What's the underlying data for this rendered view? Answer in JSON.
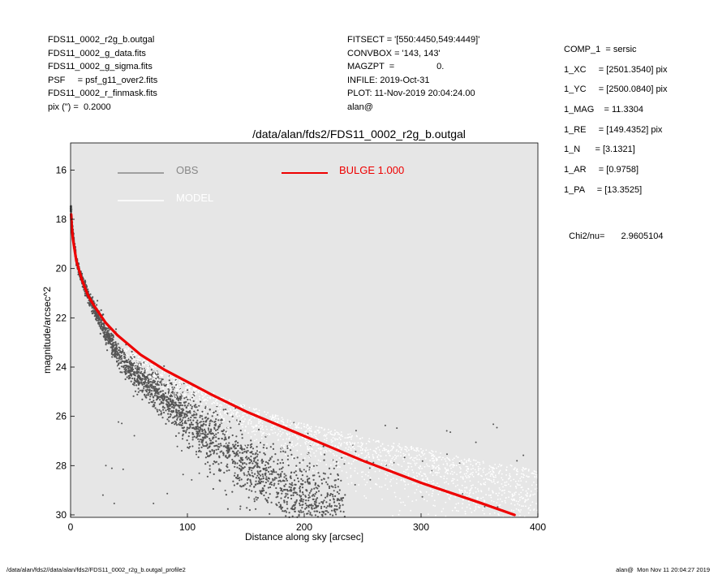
{
  "header_left": [
    "FDS11_0002_r2g_b.outgal",
    "FDS11_0002_g_data.fits",
    "FDS11_0002_g_sigma.fits",
    "PSF     = psf_g11_over2.fits",
    "FDS11_0002_r_finmask.fits",
    "pix (\") =  0.2000"
  ],
  "header_mid": [
    "FITSECT = '[550:4450,549:4449]'",
    "CONVBOX = '143, 143'",
    "MAGZPT  =                 0.",
    "INFILE: 2019-Oct-31",
    "PLOT: 11-Nov-2019 20:04:24.00",
    "alan@"
  ],
  "header_right": [
    "COMP_1  = sersic",
    "1_XC     = [2501.3540] pix",
    "1_YC     = [2500.0840] pix",
    "1_MAG    = 11.3304",
    "1_RE     = [149.4352] pix",
    "1_N      = [3.1321]",
    "1_AR     = [0.9758]",
    "1_PA     = [13.3525]"
  ],
  "chi2": {
    "label": "Chi2/nu=",
    "value": "2.9605104"
  },
  "footer": {
    "left": "/data/alan/fds2//data/alan/fds2/FDS11_0002_r2g_b.outgal_profile2",
    "right": "alan@  Mon Nov 11 20:04:27 2019"
  },
  "colors": {
    "obs": "#555555",
    "model": "#ffffff",
    "bulge": "#ee0000",
    "plot_bg": "#e6e6e6"
  },
  "chart_data": {
    "type": "scatter",
    "title": "/data/alan/fds2/FDS11_0002_r2g_b.outgal",
    "xlabel": "Distance along sky [arcsec]",
    "ylabel": "magnitude/arcsec^2",
    "xlim": [
      0,
      400
    ],
    "ylim": [
      30.1,
      14.9
    ],
    "y_inverted": true,
    "x_ticks": [
      0,
      100,
      200,
      300,
      400
    ],
    "y_ticks": [
      16,
      18,
      20,
      22,
      24,
      26,
      28,
      30
    ],
    "legend": [
      {
        "name": "OBS",
        "color": "#888888"
      },
      {
        "name": "MODEL",
        "color": "#ffffff"
      },
      {
        "name": "BULGE  1.000",
        "color": "#ee0000"
      }
    ],
    "series": [
      {
        "name": "OBS",
        "kind": "scatter",
        "x": [
          0.5,
          2,
          5,
          10,
          15,
          20,
          25,
          30,
          35,
          40,
          50,
          60,
          70,
          80,
          90,
          100,
          110,
          120,
          130,
          140,
          150,
          160,
          170,
          180,
          190,
          200,
          210,
          220,
          230
        ],
        "y": [
          17.6,
          18.6,
          19.7,
          20.5,
          21.1,
          21.6,
          22.1,
          22.6,
          23.0,
          23.4,
          24.0,
          24.4,
          24.8,
          25.2,
          25.6,
          26.0,
          26.4,
          26.8,
          27.2,
          27.6,
          27.9,
          28.2,
          28.5,
          28.8,
          29.1,
          29.4,
          29.6,
          29.8,
          30.0
        ]
      },
      {
        "name": "MODEL",
        "kind": "scatter",
        "x": [
          50,
          80,
          100,
          120,
          140,
          160,
          180,
          200,
          220,
          250,
          280,
          300,
          320,
          350,
          380,
          400
        ],
        "y": [
          23.2,
          24.2,
          24.6,
          25.0,
          25.4,
          25.7,
          26.0,
          26.3,
          26.5,
          26.8,
          27.1,
          27.3,
          27.5,
          27.8,
          28.0,
          28.2
        ]
      },
      {
        "name": "BULGE  1.000",
        "kind": "line",
        "x": [
          0.5,
          1,
          2,
          5,
          10,
          15,
          20,
          30,
          40,
          50,
          60,
          70,
          80,
          100,
          120,
          150,
          200,
          250,
          300,
          350,
          380
        ],
        "y": [
          17.8,
          18.3,
          18.8,
          19.7,
          20.5,
          21.1,
          21.5,
          22.2,
          22.7,
          23.1,
          23.5,
          23.8,
          24.1,
          24.6,
          25.1,
          25.8,
          26.8,
          27.8,
          28.7,
          29.5,
          30.0
        ]
      }
    ]
  }
}
